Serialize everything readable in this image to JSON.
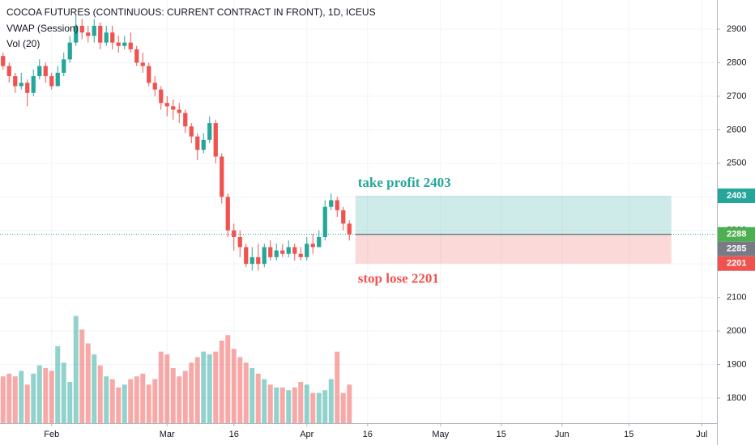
{
  "chart_data": {
    "type": "candlestick",
    "title": "COCOA FUTURES (CONTINUOUS: CURRENT CONTRACT IN FRONT), 1D, ICEUS",
    "indicators": [
      "VWAP (Session)",
      "Vol (20)"
    ],
    "up_color": "#26a69a",
    "down_color": "#ef5350",
    "open": [
      2820,
      2790,
      2760,
      2730,
      2740,
      2710,
      2760,
      2790,
      2760,
      2730,
      2770,
      2810,
      2860,
      2910,
      2890,
      2880,
      2910,
      2860,
      2890,
      2860,
      2850,
      2860,
      2840,
      2800,
      2790,
      2740,
      2720,
      2680,
      2670,
      2660,
      2650,
      2610,
      2580,
      2540,
      2570,
      2620,
      2520,
      2400,
      2300,
      2280,
      2250,
      2200,
      2220,
      2200,
      2250,
      2220,
      2240,
      2230,
      2250,
      2230,
      2220,
      2260,
      2250,
      2280,
      2370,
      2390,
      2360,
      2320
    ],
    "high": [
      2830,
      2800,
      2770,
      2770,
      2750,
      2780,
      2810,
      2800,
      2770,
      2790,
      2830,
      2880,
      2940,
      2930,
      2910,
      2930,
      2920,
      2910,
      2910,
      2880,
      2880,
      2890,
      2850,
      2830,
      2800,
      2760,
      2730,
      2700,
      2690,
      2680,
      2660,
      2620,
      2590,
      2590,
      2640,
      2630,
      2530,
      2410,
      2320,
      2300,
      2260,
      2250,
      2260,
      2260,
      2270,
      2260,
      2260,
      2270,
      2260,
      2250,
      2280,
      2290,
      2300,
      2390,
      2410,
      2400,
      2370,
      2330
    ],
    "low": [
      2780,
      2740,
      2710,
      2720,
      2670,
      2700,
      2750,
      2740,
      2720,
      2730,
      2760,
      2800,
      2850,
      2870,
      2860,
      2860,
      2840,
      2850,
      2840,
      2830,
      2840,
      2830,
      2790,
      2770,
      2730,
      2700,
      2660,
      2640,
      2630,
      2620,
      2590,
      2560,
      2510,
      2530,
      2560,
      2500,
      2380,
      2280,
      2240,
      2220,
      2190,
      2180,
      2180,
      2190,
      2210,
      2210,
      2220,
      2220,
      2210,
      2210,
      2210,
      2230,
      2250,
      2270,
      2360,
      2340,
      2300,
      2270
    ],
    "close": [
      2790,
      2760,
      2730,
      2740,
      2710,
      2760,
      2790,
      2760,
      2730,
      2770,
      2810,
      2860,
      2910,
      2890,
      2880,
      2910,
      2860,
      2890,
      2860,
      2850,
      2860,
      2840,
      2800,
      2790,
      2740,
      2720,
      2680,
      2670,
      2660,
      2650,
      2610,
      2580,
      2540,
      2570,
      2620,
      2520,
      2400,
      2300,
      2280,
      2250,
      2200,
      2220,
      2200,
      2250,
      2220,
      2240,
      2230,
      2250,
      2230,
      2220,
      2260,
      2250,
      2280,
      2370,
      2390,
      2360,
      2320,
      2288
    ],
    "volume": [
      17000,
      18000,
      17000,
      19000,
      14000,
      18000,
      21000,
      20000,
      19000,
      28000,
      22000,
      15000,
      39000,
      34000,
      29000,
      25000,
      21000,
      17000,
      16000,
      13000,
      14000,
      16000,
      17000,
      18000,
      14000,
      16000,
      26000,
      25000,
      20000,
      17000,
      19000,
      22000,
      24000,
      26000,
      25000,
      26000,
      30000,
      32000,
      27000,
      24000,
      22000,
      20000,
      18000,
      16000,
      14000,
      13000,
      13000,
      12000,
      13000,
      15000,
      14000,
      11000,
      11000,
      12000,
      16000,
      26000,
      11000,
      14000
    ],
    "volume_lim": [
      0,
      45000
    ],
    "xlim": [
      -0.5,
      117.5
    ],
    "xticks": [
      {
        "value": 8,
        "label": "Feb"
      },
      {
        "value": 27,
        "label": "Mar"
      },
      {
        "value": 38,
        "label": "16"
      },
      {
        "value": 50,
        "label": "Apr"
      },
      {
        "value": 60,
        "label": "16"
      },
      {
        "value": 72,
        "label": "May"
      },
      {
        "value": 82,
        "label": "15"
      },
      {
        "value": 92,
        "label": "Jun"
      },
      {
        "value": 103,
        "label": "15"
      },
      {
        "value": 115,
        "label": "Jul"
      }
    ],
    "ylim": [
      1725,
      2987
    ],
    "yticks": [
      1800,
      1900,
      2000,
      2100,
      2200,
      2300,
      2400,
      2500,
      2600,
      2700,
      2800,
      2900
    ],
    "grid": true,
    "position": {
      "start": 58,
      "end": 110,
      "entry": 2288,
      "take_profit": 2403,
      "stop_loss": 2201,
      "profit_label": "take profit 2403",
      "loss_label": "stop lose 2201",
      "profit_color": "#26a69a",
      "loss_color": "#ef5350"
    },
    "price_labels": [
      {
        "value": 2403,
        "color": "#26a69a"
      },
      {
        "value": 2288,
        "color": "#4caf50"
      },
      {
        "value": 2285,
        "color": "#787b86"
      },
      {
        "value": 2201,
        "color": "#ef5350"
      }
    ]
  }
}
